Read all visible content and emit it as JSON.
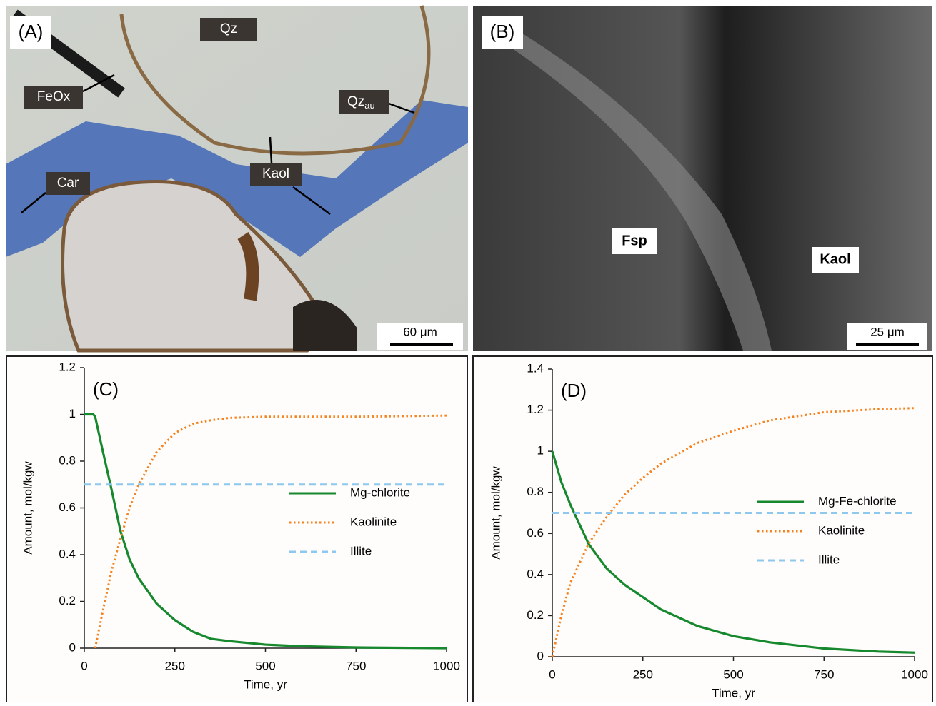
{
  "photos": [
    {
      "panel_label": "(A)",
      "scale_bar": "60 μm",
      "annotations": [
        {
          "text": "Qz"
        },
        {
          "text": "FeOx"
        },
        {
          "text": "Qz",
          "subscript": "au"
        },
        {
          "text": "Kaol"
        },
        {
          "text": "Car"
        }
      ]
    },
    {
      "panel_label": "(B)",
      "scale_bar": "25 μm",
      "annotations": [
        {
          "text": "Fsp"
        },
        {
          "text": "Kaol"
        }
      ]
    }
  ],
  "chart_data": [
    {
      "type": "line",
      "panel_label": "(C)",
      "x_label": "Time, yr",
      "y_label": "Amount, mol/kgw",
      "x": [
        0,
        25,
        30,
        50,
        75,
        100,
        125,
        150,
        200,
        250,
        300,
        350,
        400,
        500,
        600,
        750,
        1000
      ],
      "series": [
        {
          "name": "Mg-chlorite",
          "color": "#16882e",
          "line_style": "solid",
          "values": [
            1,
            1,
            0.99,
            0.85,
            0.68,
            0.5,
            0.38,
            0.3,
            0.19,
            0.12,
            0.07,
            0.04,
            0.03,
            0.015,
            0.008,
            0.003,
            0
          ]
        },
        {
          "name": "Kaolinite",
          "color": "#f5821f",
          "line_style": "dotted",
          "values": [
            null,
            null,
            0,
            0.15,
            0.33,
            0.47,
            0.6,
            0.7,
            0.84,
            0.92,
            0.96,
            0.975,
            0.985,
            0.99,
            0.99,
            0.99,
            0.995
          ]
        },
        {
          "name": "Illite",
          "color": "#8ec8ee",
          "line_style": "dashed",
          "values": [
            0.7,
            0.7,
            0.7,
            0.7,
            0.7,
            0.7,
            0.7,
            0.7,
            0.7,
            0.7,
            0.7,
            0.7,
            0.7,
            0.7,
            0.7,
            0.7,
            0.7
          ]
        }
      ],
      "xlim": [
        0,
        1000
      ],
      "xticks": [
        0,
        250,
        500,
        750,
        1000
      ],
      "ylim": [
        0,
        1.2
      ],
      "yticks": [
        0,
        0.2,
        0.4,
        0.6,
        0.8,
        1,
        1.2
      ],
      "legend": "lower right"
    },
    {
      "type": "line",
      "panel_label": "(D)",
      "x_label": "Time, yr",
      "y_label": "Amount, mol/kgw",
      "x": [
        0,
        25,
        50,
        100,
        150,
        200,
        250,
        300,
        400,
        500,
        600,
        750,
        900,
        1000
      ],
      "series": [
        {
          "name": "Mg-Fe-chlorite",
          "color": "#16882e",
          "line_style": "solid",
          "values": [
            1,
            0.85,
            0.74,
            0.55,
            0.43,
            0.35,
            0.29,
            0.23,
            0.15,
            0.1,
            0.07,
            0.04,
            0.025,
            0.02
          ]
        },
        {
          "name": "Kaolinite",
          "color": "#f5821f",
          "line_style": "dotted",
          "values": [
            0,
            0.2,
            0.36,
            0.55,
            0.68,
            0.79,
            0.87,
            0.94,
            1.04,
            1.1,
            1.15,
            1.19,
            1.205,
            1.21
          ]
        },
        {
          "name": "Illite",
          "color": "#8ec8ee",
          "line_style": "dashed",
          "values": [
            0.7,
            0.7,
            0.7,
            0.7,
            0.7,
            0.7,
            0.7,
            0.7,
            0.7,
            0.7,
            0.7,
            0.7,
            0.7,
            0.7
          ]
        }
      ],
      "xlim": [
        0,
        1000
      ],
      "xticks": [
        0,
        250,
        500,
        750,
        1000
      ],
      "ylim": [
        0,
        1.4
      ],
      "yticks": [
        0,
        0.2,
        0.4,
        0.6,
        0.8,
        1,
        1.2,
        1.4
      ],
      "legend": "lower right"
    }
  ]
}
